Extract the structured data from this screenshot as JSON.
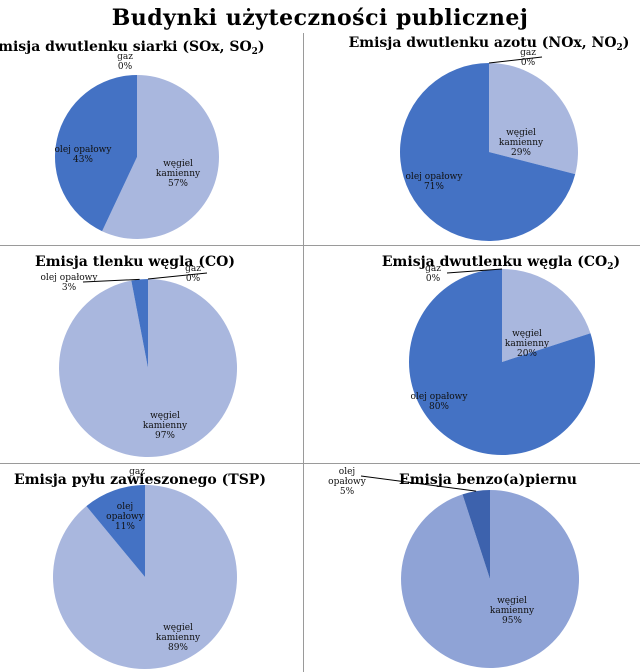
{
  "page_title": "Budynki użyteczności publicznej",
  "colors": {
    "wegiel": "#a9b7de",
    "olej": "#4472c4",
    "gaz": "#e2e7f3",
    "wegiel_benzo": "#8fa3d6",
    "olej_benzo": "#3d62ad"
  },
  "chart_data": [
    {
      "type": "pie",
      "title": "Emisja dwutlenku siarki (SOx, SO",
      "title_sub": "2",
      "title_end": ")",
      "slices": [
        {
          "name": "węgiel kamienny",
          "value": 57,
          "label_lines": [
            "węgiel",
            "kamienny",
            "57%"
          ]
        },
        {
          "name": "olej opałowy",
          "value": 43,
          "label_lines": [
            "olej opałowy",
            "43%"
          ]
        },
        {
          "name": "gaz",
          "value": 0,
          "label_lines": [
            "gaz",
            "0%"
          ]
        }
      ]
    },
    {
      "type": "pie",
      "title": "Emisja dwutlenku azotu (NOx, NO",
      "title_sub": "2",
      "title_end": ")",
      "slices": [
        {
          "name": "węgiel kamienny",
          "value": 29,
          "label_lines": [
            "węgiel",
            "kamienny",
            "29%"
          ]
        },
        {
          "name": "olej opałowy",
          "value": 71,
          "label_lines": [
            "olej opałowy",
            "71%"
          ]
        },
        {
          "name": "gaz",
          "value": 0,
          "label_lines": [
            "gaz",
            "0%"
          ]
        }
      ]
    },
    {
      "type": "pie",
      "title": "Emisja tlenku węgla (CO)",
      "title_sub": "",
      "title_end": "",
      "slices": [
        {
          "name": "węgiel kamienny",
          "value": 97,
          "label_lines": [
            "węgiel",
            "kamienny",
            "97%"
          ]
        },
        {
          "name": "olej opałowy",
          "value": 3,
          "label_lines": [
            "olej opałowy",
            "3%"
          ]
        },
        {
          "name": "gaz",
          "value": 0,
          "label_lines": [
            "gaz",
            "0%"
          ]
        }
      ]
    },
    {
      "type": "pie",
      "title": "Emisja dwutlenku węgla (CO",
      "title_sub": "2",
      "title_end": ")",
      "slices": [
        {
          "name": "węgiel kamienny",
          "value": 20,
          "label_lines": [
            "węgiel",
            "kamienny",
            "20%"
          ]
        },
        {
          "name": "olej opałowy",
          "value": 80,
          "label_lines": [
            "olej opałowy",
            "80%"
          ]
        },
        {
          "name": "gaz",
          "value": 0,
          "label_lines": [
            "gaz",
            "0%"
          ]
        }
      ]
    },
    {
      "type": "pie",
      "title": "Emisja pyłu zawieszonego (TSP)",
      "title_sub": "",
      "title_end": "",
      "slices": [
        {
          "name": "węgiel kamienny",
          "value": 89,
          "label_lines": [
            "węgiel",
            "kamienny",
            "89%"
          ]
        },
        {
          "name": "olej opałowy",
          "value": 11,
          "label_lines": [
            "olej",
            "opałowy",
            "11%"
          ]
        },
        {
          "name": "gaz",
          "value": 0,
          "label_lines": [
            "gaz"
          ]
        }
      ]
    },
    {
      "type": "pie",
      "title": "Emisja benzo(a)piernu",
      "title_sub": "",
      "title_end": "",
      "slices": [
        {
          "name": "węgiel kamienny",
          "value": 95,
          "label_lines": [
            "węgiel",
            "kamienny",
            "95%"
          ]
        },
        {
          "name": "olej opałowy",
          "value": 5,
          "label_lines": [
            "olej",
            "opałowy",
            "5%"
          ]
        }
      ]
    }
  ]
}
